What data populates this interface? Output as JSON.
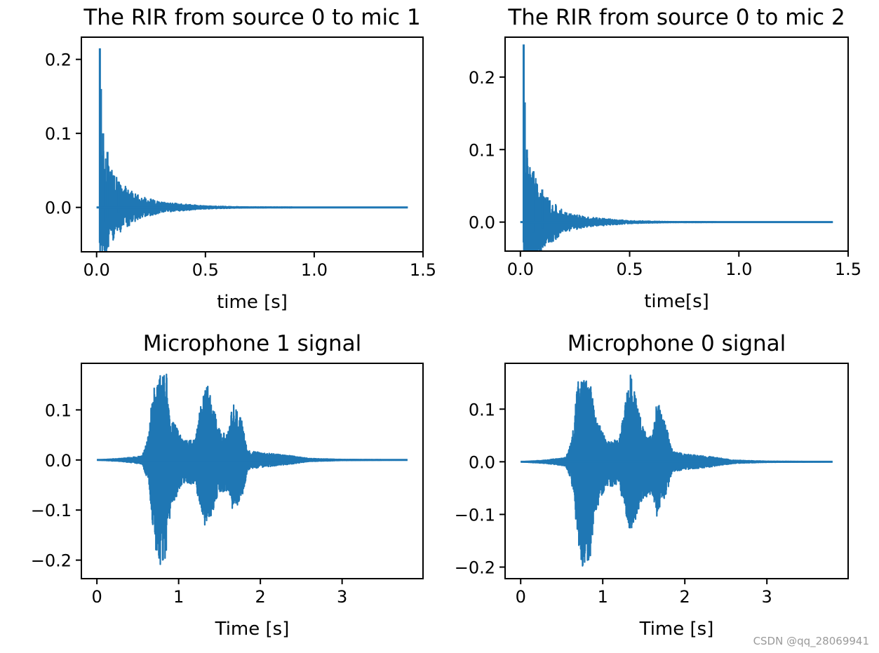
{
  "chart_data": [
    {
      "type": "line",
      "title": "The RIR from source 0 to mic 1",
      "xlabel": "time [s]",
      "ylabel": "",
      "xlim": [
        -0.07,
        1.5
      ],
      "ylim": [
        -0.06,
        0.23
      ],
      "xticks": [
        0.0,
        0.5,
        1.0,
        1.5
      ],
      "xtick_labels": [
        "0.0",
        "0.5",
        "1.0",
        "1.5"
      ],
      "yticks": [
        0.0,
        0.1,
        0.2
      ],
      "ytick_labels": [
        "0.0",
        "0.1",
        "0.2"
      ],
      "color": "#1f77b4",
      "series": [
        {
          "name": "rir_s0_m1",
          "kind": "rir",
          "onset_s": 0.015,
          "duration_s": 1.43,
          "peaks": [
            [
              0.015,
              0.215
            ],
            [
              0.02,
              0.16
            ],
            [
              0.03,
              0.1
            ],
            [
              0.05,
              0.075
            ],
            [
              0.1,
              0.035
            ]
          ],
          "min_value": -0.048,
          "decay_envelope": [
            [
              0.02,
              0.09
            ],
            [
              0.1,
              0.035
            ],
            [
              0.2,
              0.015
            ],
            [
              0.3,
              0.007
            ],
            [
              0.5,
              0.002
            ],
            [
              0.7,
              0.0005
            ],
            [
              1.43,
              0.0
            ]
          ]
        }
      ]
    },
    {
      "type": "line",
      "title": "The RIR from source 0 to mic 2",
      "xlabel": "time[s]",
      "ylabel": "",
      "xlim": [
        -0.07,
        1.5
      ],
      "ylim": [
        -0.04,
        0.255
      ],
      "xticks": [
        0.0,
        0.5,
        1.0,
        1.5
      ],
      "xtick_labels": [
        "0.0",
        "0.5",
        "1.0",
        "1.5"
      ],
      "yticks": [
        0.0,
        0.1,
        0.2
      ],
      "ytick_labels": [
        "0.0",
        "0.1",
        "0.2"
      ],
      "color": "#1f77b4",
      "series": [
        {
          "name": "rir_s0_m2",
          "kind": "rir",
          "onset_s": 0.015,
          "duration_s": 1.43,
          "peaks": [
            [
              0.015,
              0.245
            ],
            [
              0.02,
              0.165
            ],
            [
              0.03,
              0.1
            ],
            [
              0.06,
              0.07
            ],
            [
              0.1,
              0.045
            ]
          ],
          "min_value": -0.028,
          "decay_envelope": [
            [
              0.02,
              0.1
            ],
            [
              0.1,
              0.04
            ],
            [
              0.2,
              0.015
            ],
            [
              0.3,
              0.007
            ],
            [
              0.5,
              0.002
            ],
            [
              0.7,
              0.0005
            ],
            [
              1.43,
              0.0
            ]
          ]
        }
      ]
    },
    {
      "type": "line",
      "title": "Microphone 1 signal",
      "xlabel": "Time [s]",
      "ylabel": "",
      "xlim": [
        -0.19,
        3.99
      ],
      "ylim": [
        -0.237,
        0.193
      ],
      "xticks": [
        0,
        1,
        2,
        3
      ],
      "xtick_labels": [
        "0",
        "1",
        "2",
        "3"
      ],
      "yticks": [
        -0.2,
        -0.1,
        0.0,
        0.1
      ],
      "ytick_labels": [
        "−0.2",
        "−0.1",
        "0.0",
        "0.1"
      ],
      "color": "#1f77b4",
      "series": [
        {
          "name": "mic1_signal",
          "kind": "speech",
          "duration_s": 3.8,
          "envelope_pos": [
            [
              0.0,
              0.0
            ],
            [
              0.3,
              0.003
            ],
            [
              0.55,
              0.008
            ],
            [
              0.62,
              0.04
            ],
            [
              0.7,
              0.165
            ],
            [
              0.78,
              0.17
            ],
            [
              0.85,
              0.175
            ],
            [
              0.9,
              0.09
            ],
            [
              1.05,
              0.04
            ],
            [
              1.2,
              0.04
            ],
            [
              1.28,
              0.12
            ],
            [
              1.35,
              0.155
            ],
            [
              1.42,
              0.11
            ],
            [
              1.5,
              0.06
            ],
            [
              1.6,
              0.05
            ],
            [
              1.66,
              0.115
            ],
            [
              1.72,
              0.1
            ],
            [
              1.78,
              0.075
            ],
            [
              1.85,
              0.02
            ],
            [
              2.0,
              0.015
            ],
            [
              2.3,
              0.01
            ],
            [
              2.6,
              0.003
            ],
            [
              3.0,
              0.001
            ],
            [
              3.8,
              0.0
            ]
          ],
          "envelope_neg": [
            [
              0.0,
              0.0
            ],
            [
              0.3,
              -0.003
            ],
            [
              0.55,
              -0.008
            ],
            [
              0.62,
              -0.04
            ],
            [
              0.7,
              -0.16
            ],
            [
              0.75,
              -0.22
            ],
            [
              0.8,
              -0.21
            ],
            [
              0.85,
              -0.2
            ],
            [
              0.9,
              -0.1
            ],
            [
              1.05,
              -0.045
            ],
            [
              1.2,
              -0.05
            ],
            [
              1.28,
              -0.1
            ],
            [
              1.32,
              -0.135
            ],
            [
              1.4,
              -0.11
            ],
            [
              1.5,
              -0.07
            ],
            [
              1.6,
              -0.06
            ],
            [
              1.66,
              -0.1
            ],
            [
              1.72,
              -0.09
            ],
            [
              1.78,
              -0.07
            ],
            [
              1.85,
              -0.02
            ],
            [
              2.0,
              -0.015
            ],
            [
              2.3,
              -0.01
            ],
            [
              2.6,
              -0.003
            ],
            [
              3.0,
              -0.001
            ],
            [
              3.8,
              0.0
            ]
          ]
        }
      ]
    },
    {
      "type": "line",
      "title": "Microphone 0 signal",
      "xlabel": "Time [s]",
      "ylabel": "",
      "xlim": [
        -0.19,
        3.99
      ],
      "ylim": [
        -0.222,
        0.187
      ],
      "xticks": [
        0,
        1,
        2,
        3
      ],
      "xtick_labels": [
        "0",
        "1",
        "2",
        "3"
      ],
      "yticks": [
        -0.2,
        -0.1,
        0.0,
        0.1
      ],
      "ytick_labels": [
        "−0.2",
        "−0.1",
        "0.0",
        "0.1"
      ],
      "color": "#1f77b4",
      "series": [
        {
          "name": "mic0_signal",
          "kind": "speech",
          "duration_s": 3.8,
          "envelope_pos": [
            [
              0.0,
              0.0
            ],
            [
              0.3,
              0.003
            ],
            [
              0.55,
              0.008
            ],
            [
              0.62,
              0.04
            ],
            [
              0.7,
              0.155
            ],
            [
              0.78,
              0.16
            ],
            [
              0.85,
              0.163
            ],
            [
              0.9,
              0.09
            ],
            [
              1.05,
              0.04
            ],
            [
              1.2,
              0.045
            ],
            [
              1.28,
              0.12
            ],
            [
              1.34,
              0.17
            ],
            [
              1.42,
              0.11
            ],
            [
              1.5,
              0.06
            ],
            [
              1.6,
              0.05
            ],
            [
              1.66,
              0.12
            ],
            [
              1.72,
              0.09
            ],
            [
              1.78,
              0.065
            ],
            [
              1.85,
              0.02
            ],
            [
              2.0,
              0.015
            ],
            [
              2.3,
              0.01
            ],
            [
              2.6,
              0.003
            ],
            [
              3.0,
              0.001
            ],
            [
              3.8,
              0.0
            ]
          ],
          "envelope_neg": [
            [
              0.0,
              0.0
            ],
            [
              0.3,
              -0.003
            ],
            [
              0.55,
              -0.008
            ],
            [
              0.62,
              -0.04
            ],
            [
              0.7,
              -0.15
            ],
            [
              0.75,
              -0.2
            ],
            [
              0.8,
              -0.195
            ],
            [
              0.85,
              -0.18
            ],
            [
              0.9,
              -0.1
            ],
            [
              1.05,
              -0.045
            ],
            [
              1.2,
              -0.05
            ],
            [
              1.28,
              -0.1
            ],
            [
              1.34,
              -0.14
            ],
            [
              1.42,
              -0.1
            ],
            [
              1.5,
              -0.07
            ],
            [
              1.6,
              -0.06
            ],
            [
              1.66,
              -0.11
            ],
            [
              1.72,
              -0.08
            ],
            [
              1.78,
              -0.06
            ],
            [
              1.85,
              -0.02
            ],
            [
              2.0,
              -0.015
            ],
            [
              2.3,
              -0.01
            ],
            [
              2.6,
              -0.003
            ],
            [
              3.0,
              -0.001
            ],
            [
              3.8,
              0.0
            ]
          ]
        }
      ]
    }
  ],
  "watermark": "CSDN @qq_28069941"
}
